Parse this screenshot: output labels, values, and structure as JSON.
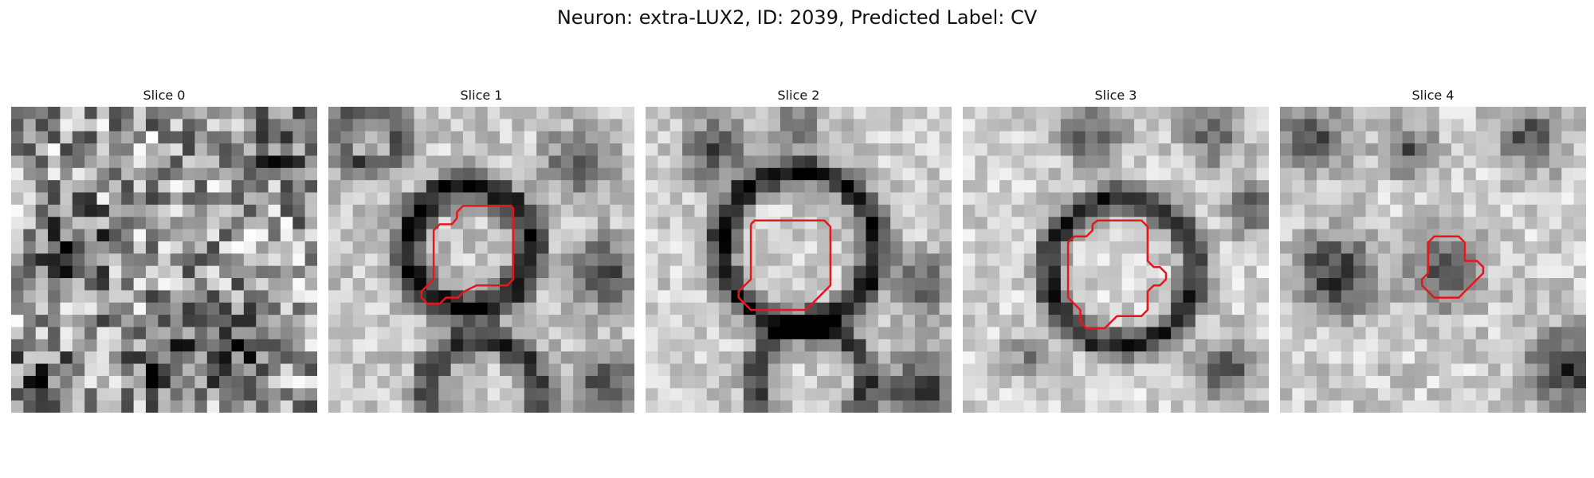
{
  "title": "Neuron: extra-LUX2, ID: 2039, Predicted Label: CV",
  "contour_color": "#e8151b",
  "slices": [
    {
      "label": "Slice 0",
      "has_contour": false
    },
    {
      "label": "Slice 1",
      "has_contour": true
    },
    {
      "label": "Slice 2",
      "has_contour": true
    },
    {
      "label": "Slice 3",
      "has_contour": true
    },
    {
      "label": "Slice 4",
      "has_contour": true
    }
  ]
}
